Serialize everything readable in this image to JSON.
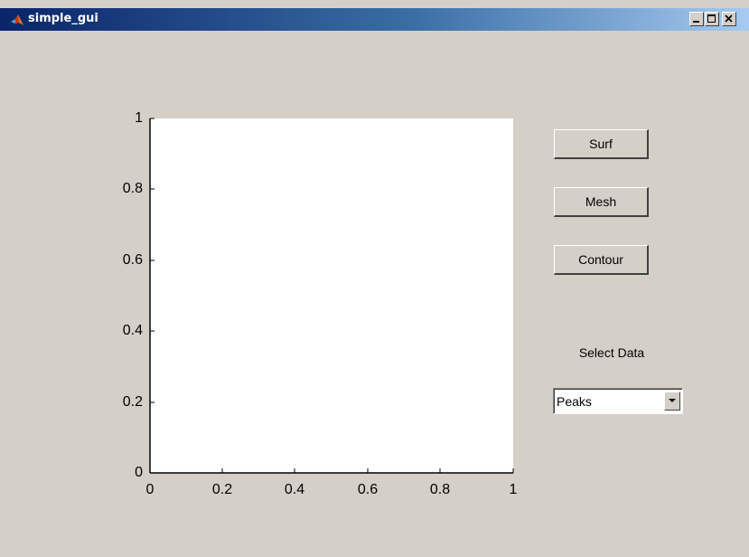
{
  "window": {
    "title": "simple_gui",
    "controls": {
      "minimize": "minimize-icon",
      "maximize": "maximize-icon",
      "close": "close-icon"
    }
  },
  "axes": {
    "y_ticks": [
      "0",
      "0.2",
      "0.4",
      "0.6",
      "0.8",
      "1"
    ],
    "x_ticks": [
      "0",
      "0.2",
      "0.4",
      "0.6",
      "0.8",
      "1"
    ]
  },
  "buttons": {
    "surf": "Surf",
    "mesh": "Mesh",
    "contour": "Contour"
  },
  "select_data": {
    "label": "Select Data",
    "value": "Peaks"
  },
  "colors": {
    "titlebar_start": "#0a246a",
    "titlebar_end": "#a6caf0",
    "panel": "#d4d0c8"
  }
}
